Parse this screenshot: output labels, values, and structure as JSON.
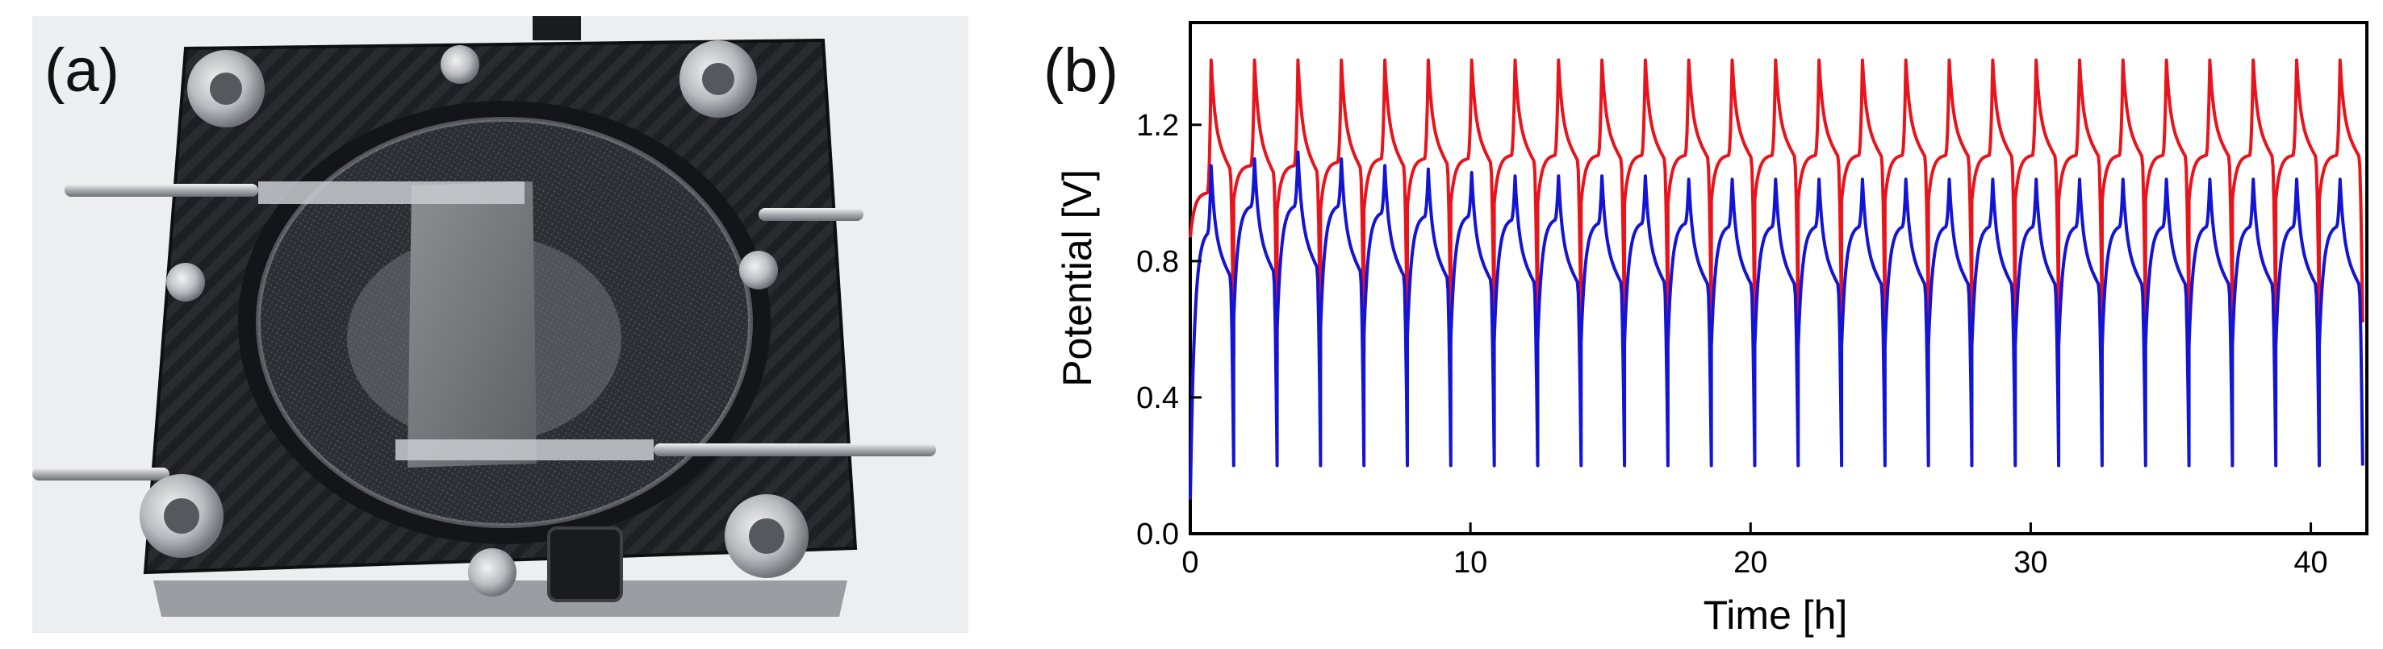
{
  "panel_a": {
    "label": "(a)"
  },
  "panel_b": {
    "label": "(b)"
  },
  "chart_data": {
    "type": "line",
    "title": "",
    "xlabel": "Time [h]",
    "ylabel": "Potential [V]",
    "xlim": [
      0,
      42
    ],
    "ylim": [
      0,
      1.5
    ],
    "x_ticks": [
      0,
      10,
      20,
      30,
      40
    ],
    "y_ticks": [
      0.0,
      0.4,
      0.8,
      1.2
    ],
    "x_tick_labels": [
      "0",
      "10",
      "20",
      "30",
      "40"
    ],
    "y_tick_labels": [
      "0.0",
      "0.4",
      "0.8",
      "1.2"
    ],
    "grid": false,
    "legend": "none",
    "cycle_period_h": 1.55,
    "cycle_count": 27,
    "series": [
      {
        "color": "#e8141c",
        "first_cycle_start": 0.87,
        "charge_start": [
          0.87,
          0.98,
          0.95,
          0.95,
          0.95,
          0.96,
          0.97,
          0.97,
          0.97,
          0.97,
          0.97,
          0.97,
          0.98,
          0.98,
          0.98,
          0.98,
          0.98,
          0.98,
          0.98,
          0.98,
          0.98,
          0.98,
          0.98,
          0.98,
          0.98,
          0.98,
          0.98
        ],
        "charge_end": [
          1.0,
          1.08,
          1.08,
          1.09,
          1.1,
          1.1,
          1.1,
          1.11,
          1.11,
          1.11,
          1.11,
          1.11,
          1.11,
          1.11,
          1.11,
          1.11,
          1.11,
          1.11,
          1.11,
          1.11,
          1.11,
          1.11,
          1.11,
          1.11,
          1.11,
          1.11,
          1.11
        ],
        "peak": [
          1.39,
          1.39,
          1.39,
          1.39,
          1.39,
          1.39,
          1.39,
          1.39,
          1.39,
          1.39,
          1.39,
          1.39,
          1.39,
          1.39,
          1.39,
          1.39,
          1.39,
          1.39,
          1.39,
          1.39,
          1.39,
          1.39,
          1.39,
          1.39,
          1.39,
          1.39,
          1.39
        ],
        "discharge_end": [
          0.52,
          0.49,
          0.5,
          0.53,
          0.54,
          0.56,
          0.57,
          0.58,
          0.59,
          0.6,
          0.6,
          0.61,
          0.61,
          0.62,
          0.62,
          0.62,
          0.62,
          0.62,
          0.62,
          0.62,
          0.62,
          0.62,
          0.62,
          0.62,
          0.62,
          0.62,
          0.62
        ]
      },
      {
        "color": "#1414d4",
        "first_cycle_start": 0.1,
        "charge_start": [
          0.1,
          0.63,
          0.6,
          0.6,
          0.58,
          0.58,
          0.57,
          0.57,
          0.56,
          0.56,
          0.56,
          0.56,
          0.55,
          0.55,
          0.55,
          0.55,
          0.55,
          0.55,
          0.55,
          0.55,
          0.55,
          0.55,
          0.55,
          0.55,
          0.55,
          0.55,
          0.55
        ],
        "charge_end": [
          0.88,
          0.96,
          0.96,
          0.96,
          0.94,
          0.93,
          0.93,
          0.92,
          0.92,
          0.91,
          0.91,
          0.91,
          0.9,
          0.9,
          0.9,
          0.9,
          0.9,
          0.9,
          0.9,
          0.9,
          0.9,
          0.9,
          0.9,
          0.9,
          0.9,
          0.9,
          0.9
        ],
        "peak": [
          1.08,
          1.1,
          1.12,
          1.1,
          1.08,
          1.07,
          1.06,
          1.05,
          1.05,
          1.05,
          1.05,
          1.04,
          1.04,
          1.04,
          1.04,
          1.04,
          1.04,
          1.04,
          1.04,
          1.04,
          1.04,
          1.04,
          1.04,
          1.04,
          1.04,
          1.04,
          1.04
        ],
        "discharge_end": [
          0.2,
          0.2,
          0.2,
          0.2,
          0.2,
          0.2,
          0.2,
          0.2,
          0.2,
          0.2,
          0.2,
          0.2,
          0.2,
          0.2,
          0.2,
          0.2,
          0.2,
          0.2,
          0.2,
          0.2,
          0.2,
          0.2,
          0.2,
          0.2,
          0.2,
          0.2,
          0.2
        ]
      }
    ]
  }
}
